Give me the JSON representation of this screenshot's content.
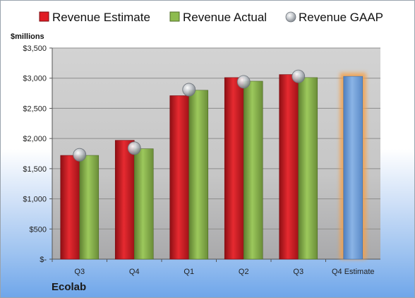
{
  "company": "Ecolab",
  "chart_data": {
    "type": "bar",
    "ylabel": "$millions",
    "categories": [
      "Q3",
      "Q4",
      "Q1",
      "Q2",
      "Q3",
      "Q4 Estimate"
    ],
    "ylim": [
      0,
      3500
    ],
    "yticks": [
      0,
      500,
      1000,
      1500,
      2000,
      2500,
      3000,
      3500
    ],
    "ytick_labels": [
      "$-",
      "$500",
      "$1,000",
      "$1,500",
      "$2,000",
      "$2,500",
      "$3,000",
      "$3,500"
    ],
    "grid": true,
    "legend": "top",
    "series": [
      {
        "name": "Revenue Estimate",
        "type": "bar",
        "color": "#e01c24",
        "values": [
          1720,
          1970,
          2710,
          3010,
          3060,
          null
        ]
      },
      {
        "name": "Revenue Actual",
        "type": "bar",
        "color": "#8dbb4f",
        "values": [
          1720,
          1830,
          2800,
          2950,
          3010,
          3030
        ]
      },
      {
        "name": "Revenue GAAP",
        "type": "scatter",
        "color": "#b9bec4",
        "values": [
          1730,
          1840,
          2810,
          2940,
          3030,
          null
        ]
      }
    ],
    "highlight": {
      "category_index": 5,
      "bar_color": "#6f9fd8",
      "glow_color": "#f5a04a"
    }
  }
}
